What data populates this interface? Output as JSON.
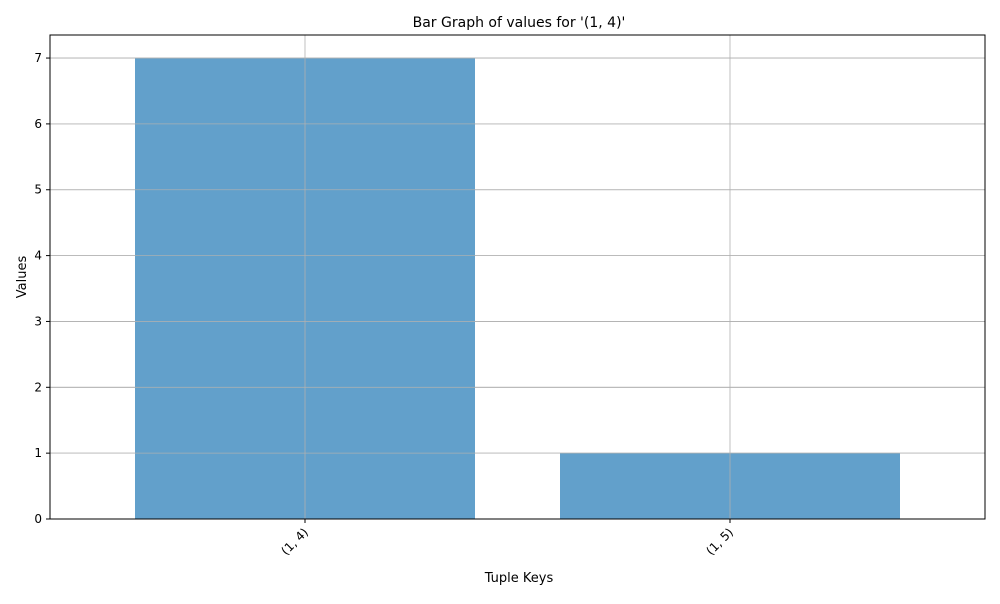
{
  "chart_data": {
    "type": "bar",
    "title": "Bar Graph of values for '(1, 4)'",
    "xlabel": "Tuple Keys",
    "ylabel": "Values",
    "categories": [
      "(1, 4)",
      "(1, 5)"
    ],
    "values": [
      7,
      1
    ],
    "ylim": [
      0,
      7.35
    ],
    "yticks": [
      0,
      1,
      2,
      3,
      4,
      5,
      6,
      7
    ],
    "grid": true,
    "bar_color": "#62a0cb"
  }
}
